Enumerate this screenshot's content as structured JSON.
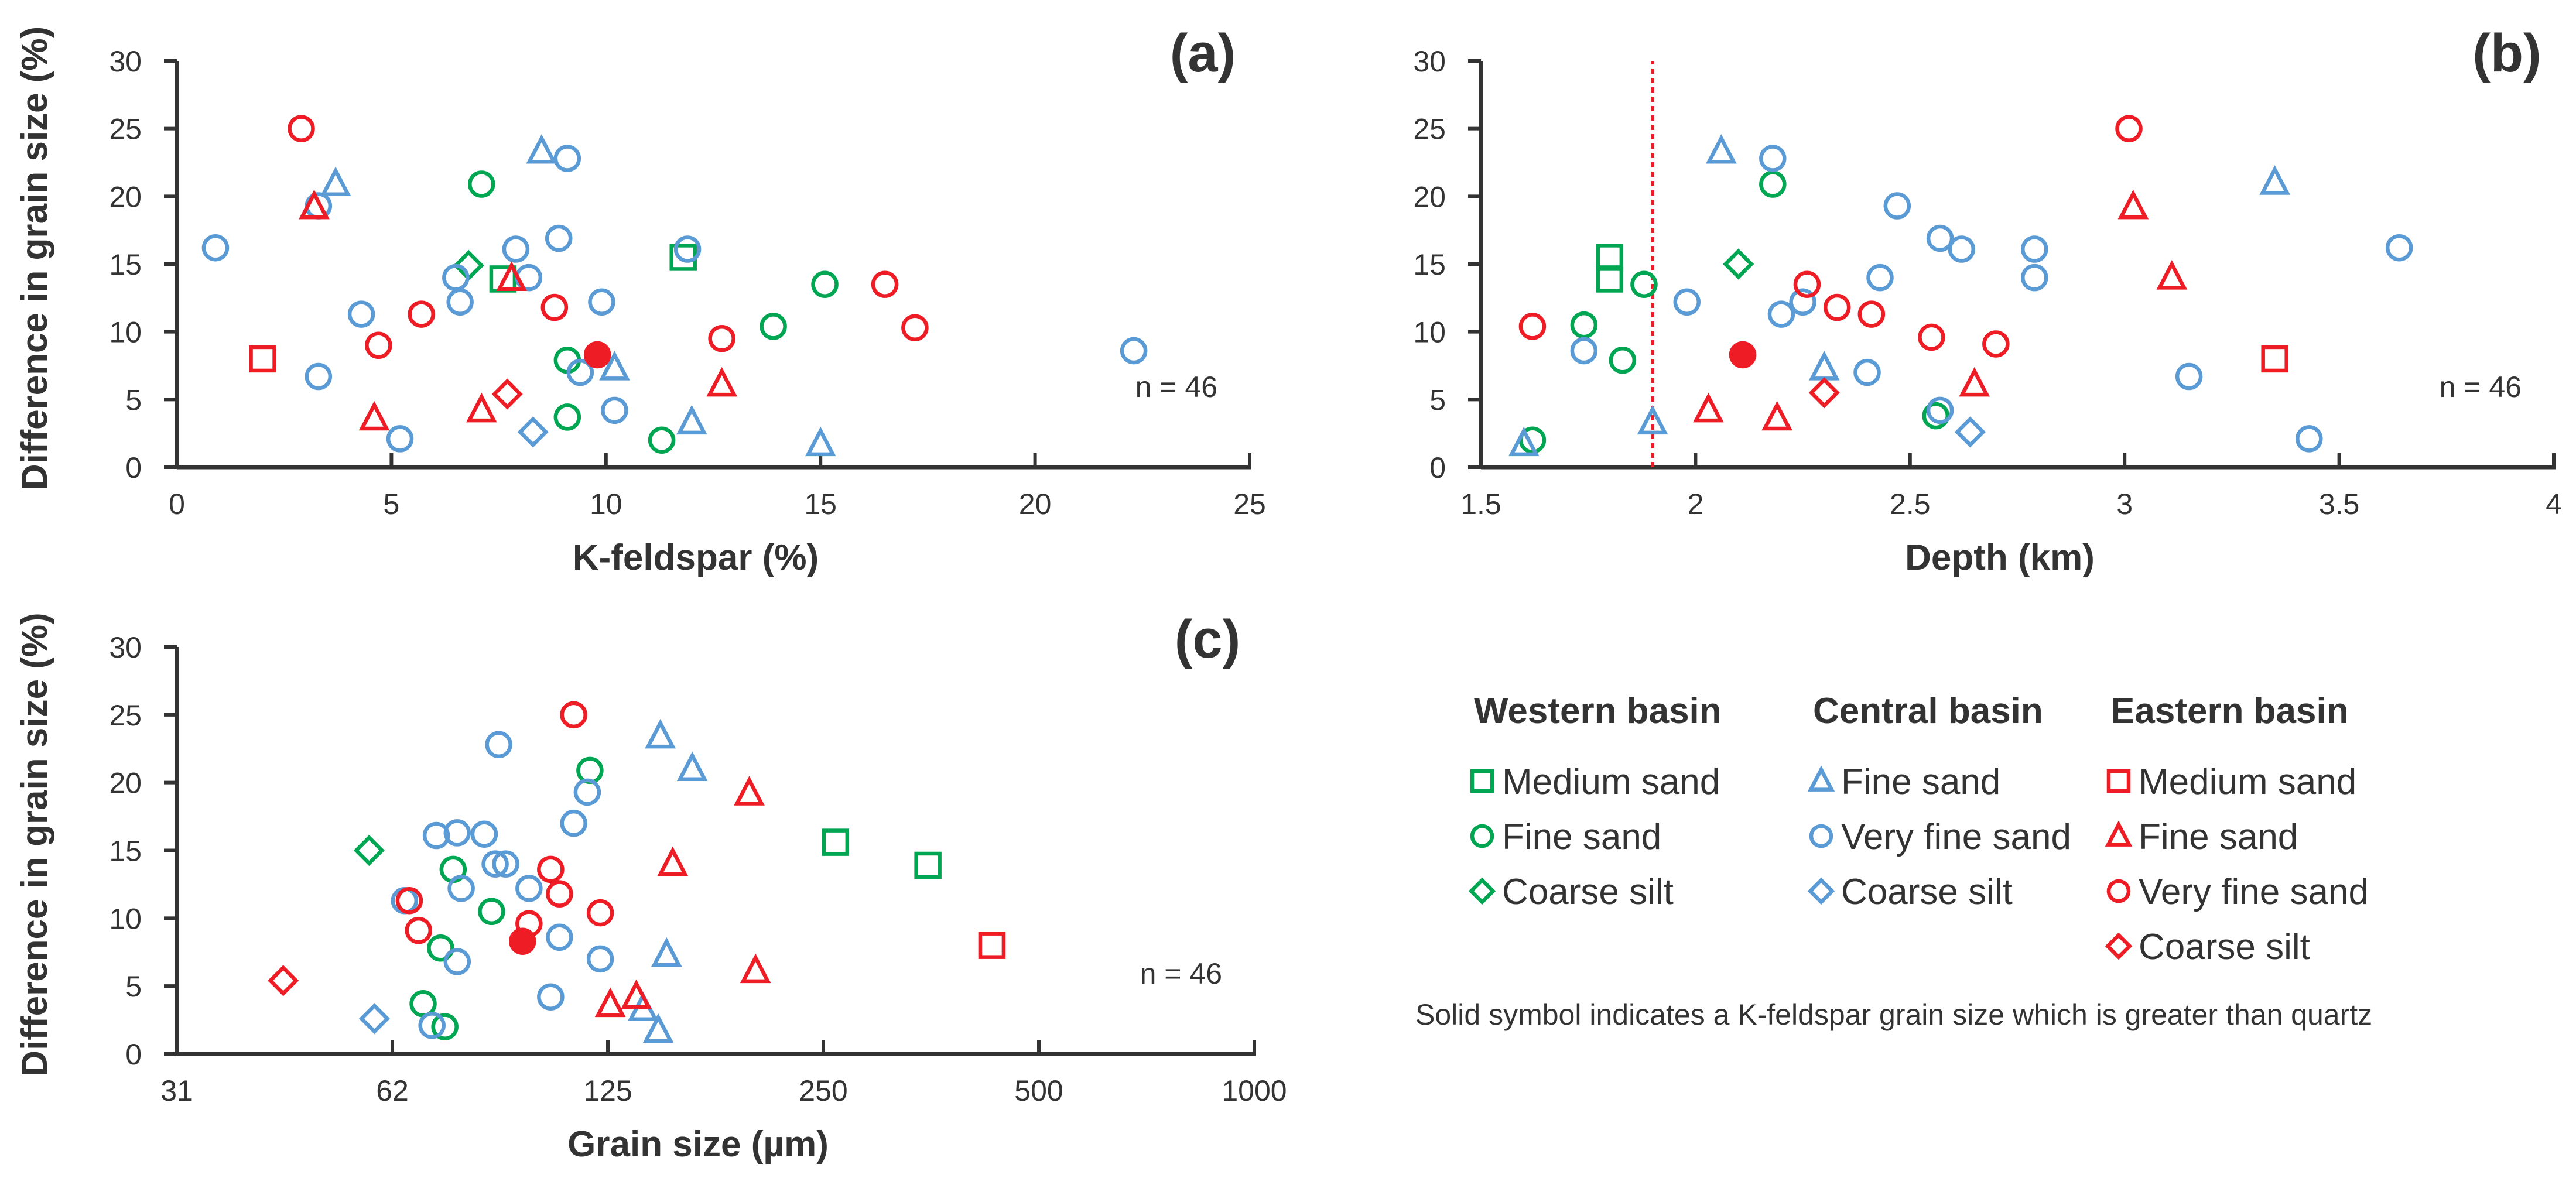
{
  "figure": {
    "colors": {
      "western": "#00A651",
      "central": "#5B9BD5",
      "eastern": "#EE1C25",
      "axis": "#333333"
    },
    "legend": {
      "groups": [
        {
          "heading": "Western basin",
          "color": "#00A651",
          "items": [
            {
              "label": "Medium sand",
              "symbol": "square"
            },
            {
              "label": "Fine sand",
              "symbol": "circle"
            },
            {
              "label": "Coarse silt",
              "symbol": "diamond"
            }
          ]
        },
        {
          "heading": "Central basin",
          "color": "#5B9BD5",
          "items": [
            {
              "label": "Fine sand",
              "symbol": "triangle"
            },
            {
              "label": "Very fine sand",
              "symbol": "circle"
            },
            {
              "label": "Coarse silt",
              "symbol": "diamond"
            }
          ]
        },
        {
          "heading": "Eastern basin",
          "color": "#EE1C25",
          "items": [
            {
              "label": "Medium sand",
              "symbol": "square"
            },
            {
              "label": "Fine sand",
              "symbol": "triangle"
            },
            {
              "label": "Very fine sand",
              "symbol": "circle"
            },
            {
              "label": "Coarse silt",
              "symbol": "diamond"
            }
          ]
        }
      ],
      "note": "Solid symbol indicates a K-feldspar grain size which is greater than quartz"
    }
  },
  "chart_data": [
    {
      "type": "scatter",
      "panel_label": "(a)",
      "xlabel": "K-feldspar (%)",
      "ylabel": "Difference in grain size (%)",
      "xlim": [
        0,
        25
      ],
      "ylim": [
        0,
        30
      ],
      "xticks": [
        0,
        5,
        10,
        15,
        20,
        25
      ],
      "yticks": [
        0,
        5,
        10,
        15,
        20,
        25,
        30
      ],
      "xtick_labels": [
        "0",
        "5",
        "10",
        "15",
        "20",
        "25"
      ],
      "ytick_labels": [
        "0",
        "5",
        "10",
        "15",
        "20",
        "25",
        "30"
      ],
      "annotation": "n = 46",
      "series": [
        {
          "name": "Western basin Medium sand",
          "color": "#00A651",
          "symbol": "square",
          "points": [
            [
              7.6,
              13.9
            ],
            [
              11.8,
              15.5
            ]
          ]
        },
        {
          "name": "Western basin Fine sand",
          "color": "#00A651",
          "symbol": "circle",
          "points": [
            [
              7.1,
              20.9
            ],
            [
              9.1,
              7.9
            ],
            [
              9.1,
              3.7
            ],
            [
              11.3,
              2.0
            ],
            [
              13.9,
              10.4
            ],
            [
              15.1,
              13.5
            ]
          ]
        },
        {
          "name": "Western basin Coarse silt",
          "color": "#00A651",
          "symbol": "diamond",
          "points": [
            [
              6.8,
              14.9
            ]
          ]
        },
        {
          "name": "Central basin Fine sand",
          "color": "#5B9BD5",
          "symbol": "triangle",
          "points": [
            [
              3.7,
              20.9
            ],
            [
              8.5,
              23.3
            ],
            [
              10.2,
              7.3
            ],
            [
              12.0,
              3.3
            ],
            [
              15.0,
              1.7
            ]
          ]
        },
        {
          "name": "Central basin Very fine sand",
          "color": "#5B9BD5",
          "symbol": "circle",
          "points": [
            [
              0.9,
              16.2
            ],
            [
              3.3,
              19.3
            ],
            [
              3.3,
              6.7
            ],
            [
              4.3,
              11.3
            ],
            [
              5.2,
              2.1
            ],
            [
              6.5,
              14.0
            ],
            [
              6.6,
              12.2
            ],
            [
              7.9,
              16.1
            ],
            [
              8.2,
              14.0
            ],
            [
              8.9,
              16.9
            ],
            [
              9.1,
              22.8
            ],
            [
              9.4,
              7.0
            ],
            [
              9.9,
              12.2
            ],
            [
              10.2,
              4.2
            ],
            [
              11.9,
              16.1
            ],
            [
              22.3,
              8.6
            ]
          ]
        },
        {
          "name": "Central basin Coarse silt",
          "color": "#5B9BD5",
          "symbol": "diamond",
          "points": [
            [
              8.3,
              2.6
            ]
          ]
        },
        {
          "name": "Eastern basin Medium sand",
          "color": "#EE1C25",
          "symbol": "square",
          "points": [
            [
              2.0,
              8.0
            ]
          ]
        },
        {
          "name": "Eastern basin Fine sand",
          "color": "#EE1C25",
          "symbol": "triangle",
          "points": [
            [
              3.2,
              19.2
            ],
            [
              4.6,
              3.6
            ],
            [
              7.1,
              4.2
            ],
            [
              7.8,
              13.9
            ],
            [
              12.7,
              6.1
            ]
          ]
        },
        {
          "name": "Eastern basin Very fine sand",
          "color": "#EE1C25",
          "symbol": "circle",
          "points": [
            [
              2.9,
              25.0
            ],
            [
              4.7,
              9.0
            ],
            [
              5.7,
              11.3
            ],
            [
              8.8,
              11.8
            ],
            [
              12.7,
              9.5
            ],
            [
              16.5,
              13.5
            ],
            [
              17.2,
              10.3
            ]
          ]
        },
        {
          "name": "Eastern basin Very fine sand (K-feldspar larger)",
          "color": "#EE1C25",
          "symbol": "circle",
          "filled": true,
          "points": [
            [
              9.8,
              8.3
            ]
          ]
        },
        {
          "name": "Eastern basin Coarse silt",
          "color": "#EE1C25",
          "symbol": "diamond",
          "points": [
            [
              7.7,
              5.4
            ]
          ]
        }
      ]
    },
    {
      "type": "scatter",
      "panel_label": "(b)",
      "xlabel": "Depth (km)",
      "ylabel": "Difference in grain size (%)",
      "xlim": [
        1.5,
        4
      ],
      "ylim": [
        0,
        30
      ],
      "xticks": [
        1.5,
        2,
        2.5,
        3,
        3.5,
        4
      ],
      "yticks": [
        0,
        5,
        10,
        15,
        20,
        25,
        30
      ],
      "xtick_labels": [
        "1.5",
        "2",
        "2.5",
        "3",
        "3.5",
        "4"
      ],
      "ytick_labels": [
        "0",
        "5",
        "10",
        "15",
        "20",
        "25",
        "30"
      ],
      "annotation": "n = 46",
      "reference_line": {
        "x": 1.9,
        "style": "dashed",
        "color": "#EE1C25"
      },
      "series": [
        {
          "name": "Western basin Medium sand",
          "color": "#00A651",
          "symbol": "square",
          "points": [
            [
              1.8,
              15.5
            ],
            [
              1.8,
              13.9
            ]
          ]
        },
        {
          "name": "Western basin Fine sand",
          "color": "#00A651",
          "symbol": "circle",
          "points": [
            [
              1.62,
              2.0
            ],
            [
              1.74,
              10.5
            ],
            [
              1.88,
              13.5
            ],
            [
              1.83,
              7.9
            ],
            [
              2.18,
              20.9
            ],
            [
              2.56,
              3.8
            ]
          ]
        },
        {
          "name": "Western basin Coarse silt",
          "color": "#00A651",
          "symbol": "diamond",
          "points": [
            [
              2.1,
              15.0
            ]
          ]
        },
        {
          "name": "Central basin Fine sand",
          "color": "#5B9BD5",
          "symbol": "triangle",
          "points": [
            [
              1.6,
              1.7
            ],
            [
              1.9,
              3.3
            ],
            [
              2.06,
              23.3
            ],
            [
              2.3,
              7.3
            ],
            [
              3.35,
              21.0
            ]
          ]
        },
        {
          "name": "Central basin Very fine sand",
          "color": "#5B9BD5",
          "symbol": "circle",
          "points": [
            [
              1.74,
              8.6
            ],
            [
              1.98,
              12.2
            ],
            [
              2.18,
              22.8
            ],
            [
              2.2,
              11.3
            ],
            [
              2.25,
              12.2
            ],
            [
              2.4,
              7.0
            ],
            [
              2.43,
              14.0
            ],
            [
              2.47,
              19.3
            ],
            [
              2.57,
              4.2
            ],
            [
              2.57,
              16.9
            ],
            [
              2.62,
              16.1
            ],
            [
              2.79,
              16.1
            ],
            [
              2.79,
              14.0
            ],
            [
              3.15,
              6.7
            ],
            [
              3.43,
              2.1
            ],
            [
              3.64,
              16.2
            ]
          ]
        },
        {
          "name": "Central basin Coarse silt",
          "color": "#5B9BD5",
          "symbol": "diamond",
          "points": [
            [
              2.64,
              2.6
            ]
          ]
        },
        {
          "name": "Eastern basin Medium sand",
          "color": "#EE1C25",
          "symbol": "square",
          "points": [
            [
              3.35,
              8.0
            ]
          ]
        },
        {
          "name": "Eastern basin Fine sand",
          "color": "#EE1C25",
          "symbol": "triangle",
          "points": [
            [
              2.03,
              4.2
            ],
            [
              2.19,
              3.6
            ],
            [
              2.65,
              6.1
            ],
            [
              3.02,
              19.2
            ],
            [
              3.11,
              14.0
            ]
          ]
        },
        {
          "name": "Eastern basin Very fine sand",
          "color": "#EE1C25",
          "symbol": "circle",
          "points": [
            [
              1.62,
              10.4
            ],
            [
              2.26,
              13.5
            ],
            [
              2.33,
              11.8
            ],
            [
              2.41,
              11.3
            ],
            [
              2.55,
              9.6
            ],
            [
              2.7,
              9.1
            ],
            [
              3.01,
              25.0
            ]
          ]
        },
        {
          "name": "Eastern basin Very fine sand (K-feldspar larger)",
          "color": "#EE1C25",
          "symbol": "circle",
          "filled": true,
          "points": [
            [
              2.11,
              8.3
            ]
          ]
        },
        {
          "name": "Eastern basin Coarse silt",
          "color": "#EE1C25",
          "symbol": "diamond",
          "points": [
            [
              2.3,
              5.5
            ]
          ]
        }
      ]
    },
    {
      "type": "scatter",
      "panel_label": "(c)",
      "xlabel": "Grain size (µm)",
      "ylabel": "Difference in grain size (%)",
      "xscale": "log2",
      "xlim": [
        31,
        1000
      ],
      "ylim": [
        0,
        30
      ],
      "xticks": [
        31.25,
        62.5,
        125,
        250,
        500,
        1000
      ],
      "yticks": [
        0,
        5,
        10,
        15,
        20,
        25,
        30
      ],
      "xtick_labels": [
        "31",
        "62",
        "125",
        "250",
        "500",
        "1000"
      ],
      "ytick_labels": [
        "0",
        "5",
        "10",
        "15",
        "20",
        "25",
        "30"
      ],
      "annotation": "n = 46",
      "series": [
        {
          "name": "Western basin Medium sand",
          "color": "#00A651",
          "symbol": "square",
          "points": [
            [
              260,
              15.6
            ],
            [
              350,
              13.9
            ]
          ]
        },
        {
          "name": "Western basin Fine sand",
          "color": "#00A651",
          "symbol": "circle",
          "points": [
            [
              69,
              3.7
            ],
            [
              74,
              2.0
            ],
            [
              73,
              7.8
            ],
            [
              76,
              13.6
            ],
            [
              86,
              10.5
            ],
            [
              118,
              20.9
            ]
          ]
        },
        {
          "name": "Western basin Coarse silt",
          "color": "#00A651",
          "symbol": "diamond",
          "points": [
            [
              58,
              15.0
            ]
          ]
        },
        {
          "name": "Central basin Fine sand",
          "color": "#5B9BD5",
          "symbol": "triangle",
          "points": [
            [
              140,
              3.3
            ],
            [
              147,
              1.7
            ],
            [
              151,
              7.3
            ],
            [
              148,
              23.4
            ],
            [
              164,
              21.0
            ]
          ]
        },
        {
          "name": "Central basin Very fine sand",
          "color": "#5B9BD5",
          "symbol": "circle",
          "points": [
            [
              65,
              11.3
            ],
            [
              71,
              2.1
            ],
            [
              72,
              16.1
            ],
            [
              77,
              6.8
            ],
            [
              77,
              16.3
            ],
            [
              78,
              12.2
            ],
            [
              84,
              16.2
            ],
            [
              87,
              14.0
            ],
            [
              88,
              22.8
            ],
            [
              90,
              14.0
            ],
            [
              97,
              12.2
            ],
            [
              104,
              4.2
            ],
            [
              107,
              8.6
            ],
            [
              112,
              17.0
            ],
            [
              117,
              19.3
            ],
            [
              122,
              7.0
            ]
          ]
        },
        {
          "name": "Central basin Coarse silt",
          "color": "#5B9BD5",
          "symbol": "diamond",
          "points": [
            [
              59,
              2.6
            ]
          ]
        },
        {
          "name": "Eastern basin Medium sand",
          "color": "#EE1C25",
          "symbol": "square",
          "points": [
            [
              430,
              8.0
            ]
          ]
        },
        {
          "name": "Eastern basin Fine sand",
          "color": "#EE1C25",
          "symbol": "triangle",
          "points": [
            [
              126,
              3.6
            ],
            [
              137,
              4.2
            ],
            [
              154,
              14.0
            ],
            [
              197,
              19.2
            ],
            [
              201,
              6.1
            ]
          ]
        },
        {
          "name": "Eastern basin Very fine sand",
          "color": "#EE1C25",
          "symbol": "circle",
          "points": [
            [
              66,
              11.3
            ],
            [
              68,
              9.1
            ],
            [
              97,
              9.6
            ],
            [
              104,
              13.6
            ],
            [
              107,
              11.8
            ],
            [
              112,
              25.0
            ],
            [
              122,
              10.4
            ]
          ]
        },
        {
          "name": "Eastern basin Very fine sand (K-feldspar larger)",
          "color": "#EE1C25",
          "symbol": "circle",
          "filled": true,
          "points": [
            [
              95,
              8.3
            ]
          ]
        },
        {
          "name": "Eastern basin Coarse silt",
          "color": "#EE1C25",
          "symbol": "diamond",
          "points": [
            [
              44,
              5.4
            ]
          ]
        }
      ]
    }
  ]
}
